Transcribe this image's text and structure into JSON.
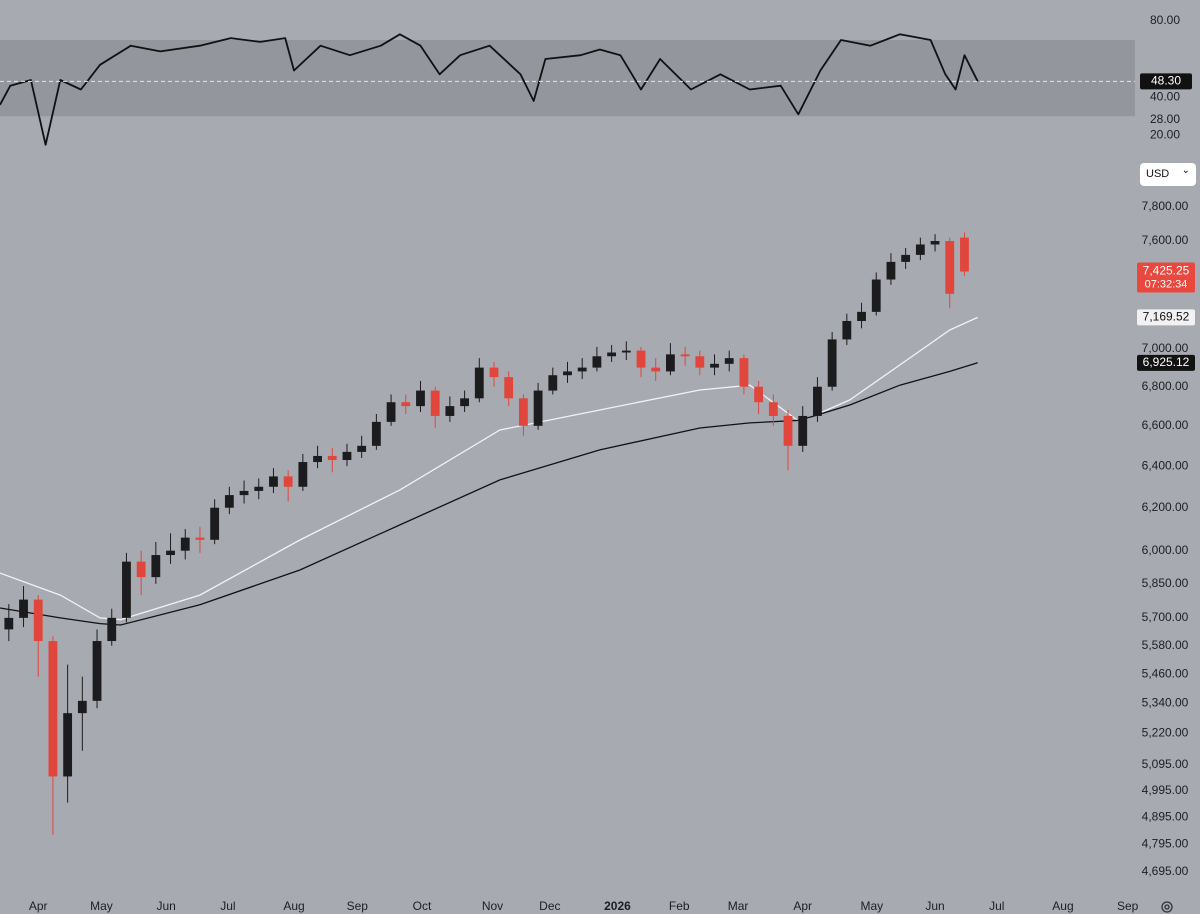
{
  "chart_data": [
    {
      "type": "line",
      "x": [
        -2.6,
        -1.9,
        -0.5,
        0.5,
        1.5,
        2.9,
        4.2,
        6.3,
        8.3,
        11,
        13.1,
        15.1,
        16.8,
        17.4,
        19.2,
        21.2,
        23.3,
        24.6,
        26,
        27.3,
        28.7,
        30.7,
        32.8,
        33.7,
        34.5,
        36.9,
        38.2,
        39.6,
        41,
        42.3,
        44.4,
        46.4,
        48.4,
        50.5,
        51.7,
        53.2,
        54.6,
        56.6,
        58.6,
        60.7,
        61.7,
        62.4,
        63,
        63.9
      ],
      "values": [
        36,
        46,
        49,
        15,
        49,
        44,
        57,
        67,
        64,
        67,
        71,
        69,
        71,
        54,
        67,
        62,
        67,
        73,
        67,
        52,
        62,
        67,
        52,
        38,
        60,
        62,
        65,
        62,
        44,
        60,
        44,
        52,
        44,
        46,
        31,
        54,
        70,
        67,
        73,
        70,
        52,
        44,
        62,
        48.3
      ],
      "value_labels": [
        null,
        null,
        null,
        null,
        null,
        null,
        null,
        null,
        null,
        null,
        null,
        null,
        null,
        null,
        null,
        null,
        null,
        null,
        null,
        null,
        null,
        null,
        null,
        null,
        null,
        null,
        null,
        null,
        null,
        null,
        null,
        null,
        null,
        null,
        null,
        null,
        null,
        null,
        null,
        null,
        null,
        null,
        null,
        "48.30"
      ],
      "color": "#111111",
      "band": [
        30,
        70
      ],
      "xlim": [
        -2.6,
        74.6
      ],
      "ylim": [
        7,
        91
      ],
      "yticks": [
        {
          "value": 80,
          "label": "80.00"
        },
        {
          "value": 40,
          "label": "40.00"
        },
        {
          "value": 28,
          "label": "28.00"
        },
        {
          "value": 20,
          "label": "20.00"
        }
      ]
    },
    {
      "type": "candlestick",
      "currency": "USD",
      "log_scale": true,
      "x": [
        -2,
        -1,
        0,
        1,
        2,
        3,
        4,
        5,
        6,
        7,
        8,
        9,
        10,
        11,
        12,
        13,
        14,
        15,
        16,
        17,
        18,
        19,
        20,
        21,
        22,
        23,
        24,
        25,
        26,
        27,
        28,
        29,
        30,
        31,
        32,
        33,
        34,
        35,
        36,
        37,
        38,
        39,
        40,
        41,
        42,
        43,
        44,
        45,
        46,
        47,
        48,
        49,
        50,
        51,
        52,
        53,
        54,
        55,
        56,
        57,
        58,
        59,
        60,
        61,
        62,
        63
      ],
      "open": [
        5650,
        5700,
        5780,
        5600,
        5050,
        5300,
        5350,
        5600,
        5700,
        5950,
        5880,
        5980,
        6000,
        6060,
        6050,
        6200,
        6260,
        6280,
        6300,
        6350,
        6300,
        6420,
        6450,
        6430,
        6470,
        6500,
        6620,
        6720,
        6700,
        6780,
        6650,
        6700,
        6740,
        6900,
        6850,
        6740,
        6600,
        6780,
        6860,
        6880,
        6900,
        6960,
        6980,
        6990,
        6900,
        6880,
        6970,
        6960,
        6900,
        6920,
        6950,
        6800,
        6720,
        6650,
        6500,
        6650,
        6800,
        7050,
        7150,
        7200,
        7380,
        7480,
        7520,
        7580,
        7600,
        7620
      ],
      "high": [
        5760,
        5840,
        5800,
        5620,
        5500,
        5450,
        5650,
        5740,
        5990,
        6000,
        6040,
        6080,
        6100,
        6110,
        6240,
        6300,
        6330,
        6340,
        6390,
        6380,
        6460,
        6500,
        6490,
        6510,
        6550,
        6660,
        6760,
        6760,
        6830,
        6800,
        6750,
        6780,
        6950,
        6930,
        6880,
        6760,
        6820,
        6900,
        6930,
        6950,
        7010,
        7020,
        7040,
        7010,
        6950,
        7030,
        7010,
        6990,
        6970,
        6990,
        6970,
        6830,
        6760,
        6680,
        6700,
        6850,
        7090,
        7190,
        7250,
        7420,
        7530,
        7560,
        7620,
        7640,
        7620,
        7650
      ],
      "low": [
        5600,
        5660,
        5450,
        4830,
        4950,
        5150,
        5320,
        5580,
        5680,
        5800,
        5850,
        5940,
        5960,
        5990,
        6030,
        6170,
        6220,
        6240,
        6270,
        6230,
        6280,
        6390,
        6370,
        6400,
        6440,
        6480,
        6600,
        6660,
        6670,
        6590,
        6620,
        6670,
        6720,
        6800,
        6700,
        6550,
        6580,
        6760,
        6820,
        6840,
        6880,
        6930,
        6940,
        6850,
        6830,
        6860,
        6910,
        6860,
        6860,
        6880,
        6760,
        6660,
        6600,
        6380,
        6470,
        6620,
        6780,
        7020,
        7110,
        7180,
        7350,
        7440,
        7490,
        7540,
        7220,
        7400
      ],
      "close": [
        5700,
        5780,
        5600,
        5050,
        5300,
        5350,
        5600,
        5700,
        5950,
        5880,
        5980,
        6000,
        6060,
        6050,
        6200,
        6260,
        6280,
        6300,
        6350,
        6300,
        6420,
        6450,
        6430,
        6470,
        6500,
        6620,
        6720,
        6700,
        6780,
        6650,
        6700,
        6740,
        6900,
        6850,
        6740,
        6600,
        6780,
        6860,
        6880,
        6900,
        6960,
        6980,
        6990,
        6900,
        6880,
        6970,
        6960,
        6900,
        6920,
        6950,
        6800,
        6720,
        6650,
        6500,
        6650,
        6800,
        7050,
        7150,
        7200,
        7380,
        7480,
        7520,
        7580,
        7600,
        7300,
        7425.25
      ],
      "last_label": "7,425.25",
      "countdown": "07:32:34",
      "up_color": "#1c1c1e",
      "down_color": "#e0463c",
      "series": [
        {
          "color": "#f2f2f2",
          "x": [
            -2.6,
            1.5,
            4.2,
            5.6,
            11,
            17.8,
            24.6,
            31.4,
            38.2,
            45,
            48.4,
            51.8,
            55.2,
            58.6,
            62,
            63.9
          ],
          "values": [
            5898,
            5800,
            5700,
            5692,
            5800,
            6049,
            6285,
            6579,
            6680,
            6783,
            6808,
            6620,
            6732,
            6914,
            7101,
            7169.52
          ],
          "value_labels": [
            null,
            null,
            null,
            null,
            null,
            null,
            null,
            null,
            null,
            null,
            null,
            null,
            null,
            null,
            null,
            "7,169.52"
          ]
        },
        {
          "color": "#121212",
          "x": [
            -2.6,
            1.5,
            4.2,
            5.6,
            11,
            17.8,
            24.6,
            31.4,
            38.2,
            45,
            48.4,
            51.8,
            55.2,
            58.6,
            62,
            63.9
          ],
          "values": [
            5743,
            5700,
            5675,
            5669,
            5757,
            5912,
            6119,
            6333,
            6480,
            6589,
            6615,
            6628,
            6706,
            6808,
            6880,
            6925.12
          ],
          "value_labels": [
            null,
            null,
            null,
            null,
            null,
            null,
            null,
            null,
            null,
            null,
            null,
            null,
            null,
            null,
            null,
            "6,925.12"
          ]
        }
      ],
      "xlim": [
        -2.6,
        74.6
      ],
      "ylim": [
        4613,
        7902
      ],
      "yticks": [
        {
          "value": 7800,
          "label": "7,800.00"
        },
        {
          "value": 7600,
          "label": "7,600.00"
        },
        {
          "value": 7000,
          "label": "7,000.00"
        },
        {
          "value": 6800,
          "label": "6,800.00"
        },
        {
          "value": 6600,
          "label": "6,600.00"
        },
        {
          "value": 6400,
          "label": "6,400.00"
        },
        {
          "value": 6200,
          "label": "6,200.00"
        },
        {
          "value": 6000,
          "label": "6,000.00"
        },
        {
          "value": 5850,
          "label": "5,850.00"
        },
        {
          "value": 5700,
          "label": "5,700.00"
        },
        {
          "value": 5580,
          "label": "5,580.00"
        },
        {
          "value": 5460,
          "label": "5,460.00"
        },
        {
          "value": 5340,
          "label": "5,340.00"
        },
        {
          "value": 5220,
          "label": "5,220.00"
        },
        {
          "value": 5095,
          "label": "5,095.00"
        },
        {
          "value": 4995,
          "label": "4,995.00"
        },
        {
          "value": 4895,
          "label": "4,895.00"
        },
        {
          "value": 4795,
          "label": "4,795.00"
        },
        {
          "value": 4695,
          "label": "4,695.00"
        }
      ],
      "xticks": [
        {
          "value": 0,
          "label": "Apr"
        },
        {
          "value": 4.3,
          "label": "May"
        },
        {
          "value": 8.7,
          "label": "Jun"
        },
        {
          "value": 12.9,
          "label": "Jul"
        },
        {
          "value": 17.4,
          "label": "Aug"
        },
        {
          "value": 21.7,
          "label": "Sep"
        },
        {
          "value": 26.1,
          "label": "Oct"
        },
        {
          "value": 30.9,
          "label": "Nov"
        },
        {
          "value": 34.8,
          "label": "Dec"
        },
        {
          "value": 39.4,
          "label": "2026"
        },
        {
          "value": 43.6,
          "label": "Feb"
        },
        {
          "value": 47.6,
          "label": "Mar"
        },
        {
          "value": 52,
          "label": "Apr"
        },
        {
          "value": 56.7,
          "label": "May"
        },
        {
          "value": 61,
          "label": "Jun"
        },
        {
          "value": 65.2,
          "label": "Jul"
        },
        {
          "value": 69.7,
          "label": "Aug"
        },
        {
          "value": 74.1,
          "label": "Sep"
        }
      ]
    }
  ]
}
